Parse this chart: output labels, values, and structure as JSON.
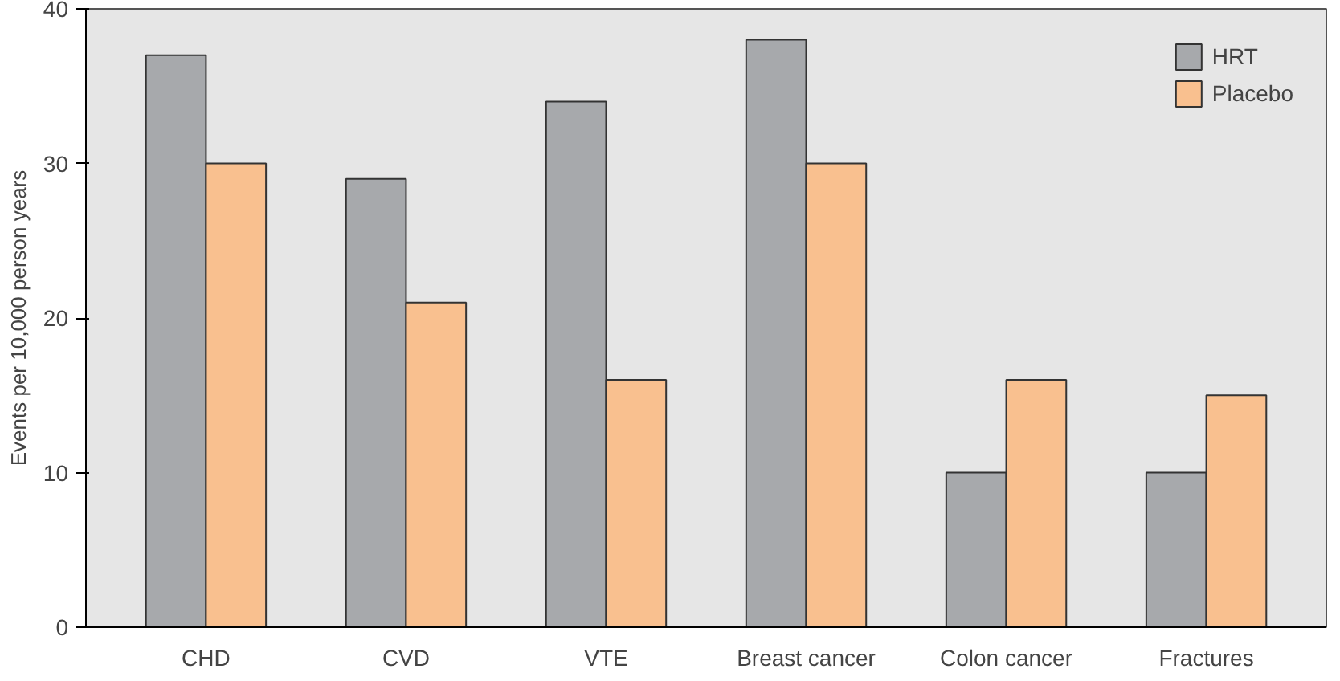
{
  "chart_data": {
    "type": "bar",
    "ylabel": "Events per 10,000 person years",
    "categories": [
      "CHD",
      "CVD",
      "VTE",
      "Breast cancer",
      "Colon cancer",
      "Fractures"
    ],
    "series": [
      {
        "name": "HRT",
        "color": "#a7a9ac",
        "values": [
          37,
          29,
          34,
          38,
          10,
          10
        ]
      },
      {
        "name": "Placebo",
        "color": "#f9c08f",
        "values": [
          30,
          21,
          16,
          30,
          16,
          15
        ]
      }
    ],
    "ylim": [
      0,
      40
    ],
    "yticks": [
      0,
      10,
      20,
      30,
      40
    ],
    "grid": false,
    "legend": "top right"
  }
}
